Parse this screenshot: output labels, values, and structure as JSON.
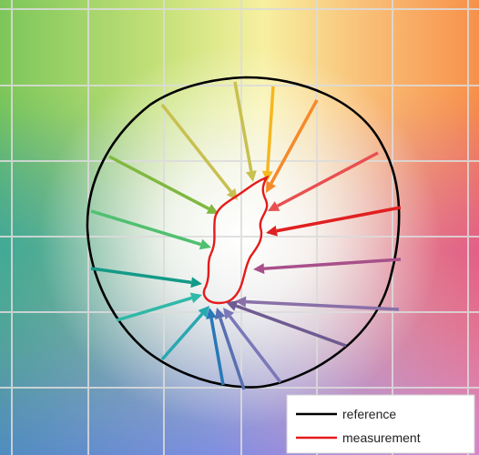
{
  "legend": {
    "reference": "reference",
    "measurement": "measurement"
  },
  "colors": {
    "reference_line": "#000000",
    "measurement_line": "#e51b1b",
    "grid": "#d9d9d9",
    "legend_bg": "#ffffff"
  },
  "arrows": [
    {
      "color": "#c8c050",
      "name": "arrow-yellow-green"
    },
    {
      "color": "#f5b820",
      "name": "arrow-yellow"
    },
    {
      "color": "#f58a2a",
      "name": "arrow-orange"
    },
    {
      "color": "#e85050",
      "name": "arrow-light-red"
    },
    {
      "color": "#e02020",
      "name": "arrow-red"
    },
    {
      "color": "#a8508a",
      "name": "arrow-magenta"
    },
    {
      "color": "#8a70a8",
      "name": "arrow-violet"
    },
    {
      "color": "#6f5a92",
      "name": "arrow-purple"
    },
    {
      "color": "#7a78b8",
      "name": "arrow-lavender"
    },
    {
      "color": "#5870b0",
      "name": "arrow-slate-blue"
    },
    {
      "color": "#2878b8",
      "name": "arrow-blue"
    },
    {
      "color": "#28a8b0",
      "name": "arrow-cyan"
    },
    {
      "color": "#30b8a8",
      "name": "arrow-turquoise"
    },
    {
      "color": "#139a88",
      "name": "arrow-teal"
    },
    {
      "color": "#50c070",
      "name": "arrow-green"
    },
    {
      "color": "#80b840",
      "name": "arrow-olive-green"
    }
  ]
}
